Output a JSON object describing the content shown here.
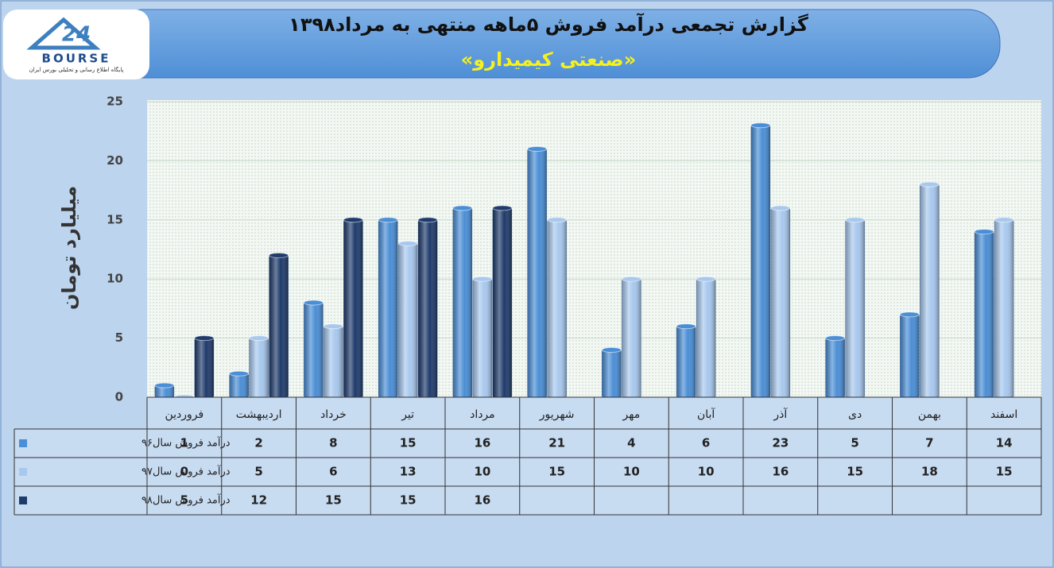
{
  "logo": {
    "number": "24",
    "text": "BOURSE",
    "subtitle": "پایگاه اطلاع رسانی و تحلیلی بورس ایران"
  },
  "chart_data": {
    "type": "bar",
    "title": "گزارش تجمعی درآمد فروش ۵ماهه منتهی به مرداد۱۳۹۸",
    "subtitle": "«صنعتی کیمیدارو»",
    "y_label": "میلیارد تومان",
    "categories": [
      "فروردین",
      "اردیبهشت",
      "خرداد",
      "تیر",
      "مرداد",
      "شهریور",
      "مهر",
      "آبان",
      "آذر",
      "دی",
      "بهمن",
      "اسفند"
    ],
    "series": [
      {
        "name": "درآمد فروش سال۹۶",
        "color": "#4a8ed6",
        "values": [
          1,
          2,
          8,
          15,
          16,
          21,
          4,
          6,
          23,
          5,
          7,
          14
        ]
      },
      {
        "name": "درآمد فروش سال۹۷",
        "color": "#a8c8ee",
        "values": [
          0,
          5,
          6,
          13,
          10,
          15,
          10,
          10,
          16,
          15,
          18,
          15
        ]
      },
      {
        "name": "درآمد فروش سال۹۸",
        "color": "#1f3b6c",
        "values": [
          5,
          12,
          15,
          15,
          16,
          null,
          null,
          null,
          null,
          null,
          null,
          null
        ]
      }
    ],
    "ylim": [
      0,
      25
    ],
    "yticks": [
      0,
      5,
      10,
      15,
      20,
      25
    ],
    "grid": true
  }
}
